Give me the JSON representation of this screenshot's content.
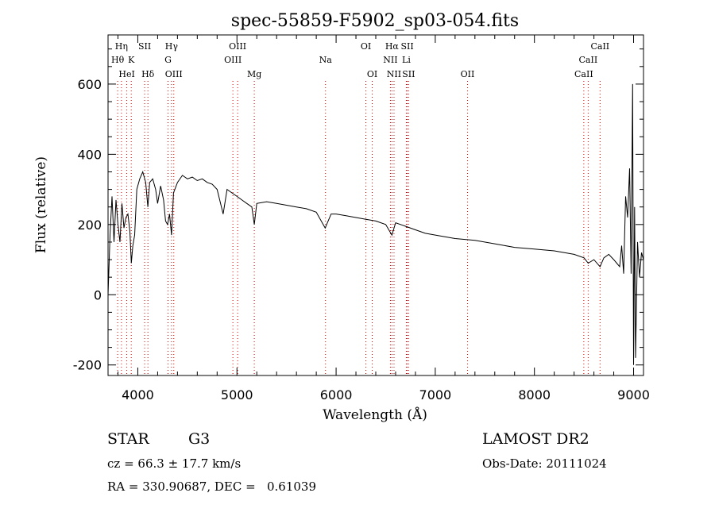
{
  "chart_data": {
    "type": "line",
    "title": "spec-55859-F5902_sp03-054.fits",
    "xlabel": "Wavelength (Å)",
    "ylabel": "Flux (relative)",
    "xlim": [
      3700,
      9100
    ],
    "ylim": [
      -230,
      740
    ],
    "xticks": [
      4000,
      5000,
      6000,
      7000,
      8000,
      9000
    ],
    "yticks": [
      -200,
      0,
      200,
      400,
      600
    ],
    "grid": false,
    "line_color": "#000000",
    "marker_line_color": "#cc0000",
    "spectrum": {
      "x": [
        3700,
        3720,
        3740,
        3760,
        3780,
        3800,
        3820,
        3840,
        3860,
        3880,
        3900,
        3920,
        3935,
        3950,
        3968,
        3990,
        4020,
        4050,
        4080,
        4101,
        4120,
        4150,
        4180,
        4200,
        4230,
        4260,
        4280,
        4300,
        4320,
        4340,
        4360,
        4400,
        4450,
        4500,
        4550,
        4600,
        4650,
        4700,
        4750,
        4800,
        4861,
        4900,
        4950,
        5000,
        5050,
        5100,
        5150,
        5175,
        5200,
        5300,
        5400,
        5500,
        5600,
        5700,
        5800,
        5890,
        5950,
        6000,
        6100,
        6200,
        6300,
        6400,
        6500,
        6563,
        6600,
        6700,
        6800,
        6900,
        7000,
        7200,
        7400,
        7600,
        7800,
        8000,
        8200,
        8400,
        8500,
        8542,
        8600,
        8662,
        8700,
        8750,
        8800,
        8830,
        8860,
        8880,
        8900,
        8920,
        8940,
        8960,
        8975,
        8990,
        9000,
        9010,
        9020,
        9040,
        9060,
        9080,
        9100
      ],
      "y": [
        0,
        170,
        280,
        150,
        270,
        200,
        150,
        260,
        190,
        220,
        230,
        180,
        90,
        140,
        170,
        300,
        330,
        350,
        320,
        250,
        320,
        330,
        300,
        260,
        310,
        270,
        210,
        200,
        230,
        170,
        290,
        320,
        340,
        330,
        335,
        325,
        330,
        320,
        315,
        300,
        230,
        300,
        290,
        280,
        270,
        260,
        250,
        200,
        260,
        265,
        260,
        255,
        250,
        245,
        235,
        190,
        230,
        230,
        225,
        220,
        215,
        210,
        200,
        170,
        205,
        195,
        185,
        175,
        170,
        160,
        155,
        145,
        135,
        130,
        125,
        115,
        105,
        90,
        100,
        80,
        105,
        115,
        100,
        90,
        80,
        140,
        60,
        280,
        220,
        360,
        60,
        600,
        -200,
        250,
        -180,
        150,
        50,
        120,
        100
      ]
    },
    "spectral_lines": [
      {
        "label": "Hη",
        "wavelength": 3835,
        "row": 0
      },
      {
        "label": "Hθ",
        "wavelength": 3797,
        "row": 1
      },
      {
        "label": "K",
        "wavelength": 3934,
        "row": 1
      },
      {
        "label": "HeI",
        "wavelength": 3889,
        "row": 2
      },
      {
        "label": "SII",
        "wavelength": 4069,
        "row": 0
      },
      {
        "label": "Hδ",
        "wavelength": 4102,
        "row": 2
      },
      {
        "label": "Hγ",
        "wavelength": 4340,
        "row": 0
      },
      {
        "label": "G",
        "wavelength": 4305,
        "row": 1
      },
      {
        "label": "OIII",
        "wavelength": 4363,
        "row": 2
      },
      {
        "label": "OIII",
        "wavelength": 5007,
        "row": 0
      },
      {
        "label": "OIII",
        "wavelength": 4959,
        "row": 1
      },
      {
        "label": "Mg",
        "wavelength": 5175,
        "row": 2
      },
      {
        "label": "Na",
        "wavelength": 5893,
        "row": 1
      },
      {
        "label": "OI",
        "wavelength": 6300,
        "row": 0
      },
      {
        "label": "OI",
        "wavelength": 6364,
        "row": 2
      },
      {
        "label": "Hα",
        "wavelength": 6563,
        "row": 0
      },
      {
        "label": "SII",
        "wavelength": 6717,
        "row": 0
      },
      {
        "label": "NII",
        "wavelength": 6548,
        "row": 1
      },
      {
        "label": "Li",
        "wavelength": 6708,
        "row": 1
      },
      {
        "label": "NII",
        "wavelength": 6584,
        "row": 2
      },
      {
        "label": "SII",
        "wavelength": 6731,
        "row": 2
      },
      {
        "label": "OII",
        "wavelength": 7325,
        "row": 2
      },
      {
        "label": "CaII",
        "wavelength": 8662,
        "row": 0
      },
      {
        "label": "CaII",
        "wavelength": 8542,
        "row": 1
      },
      {
        "label": "CaII",
        "wavelength": 8498,
        "row": 2
      }
    ]
  },
  "info": {
    "object_class": "STAR",
    "subclass": "G3",
    "survey": "LAMOST DR2",
    "velocity": "cz = 66.3 ± 17.7 km/s",
    "obs_date": "Obs-Date: 20111024",
    "coords": "RA = 330.90687, DEC =   0.61039"
  }
}
